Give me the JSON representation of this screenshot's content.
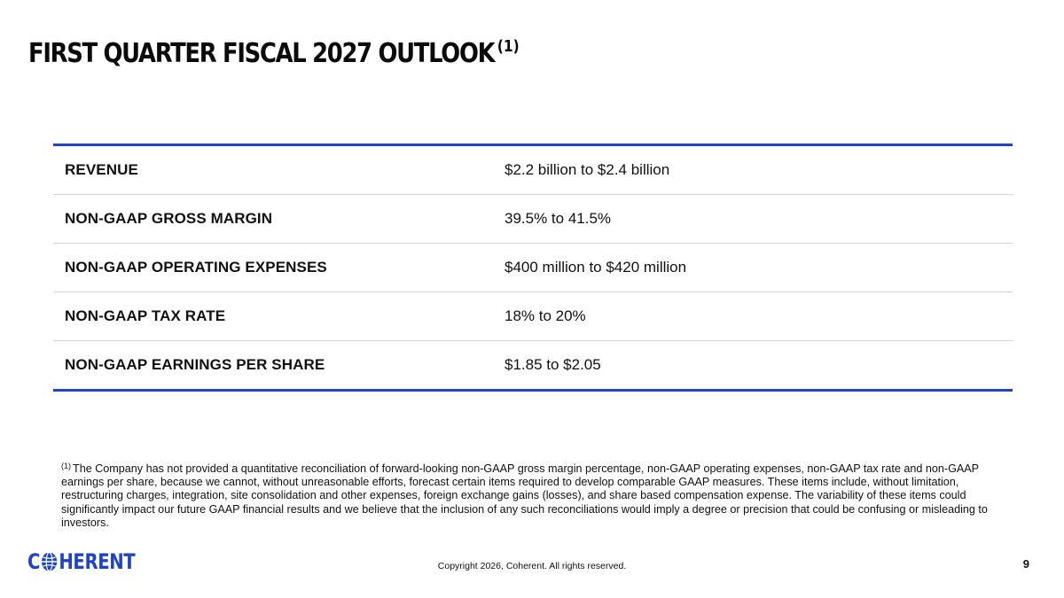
{
  "title": {
    "text": "FIRST QUARTER FISCAL 2027 OUTLOOK",
    "footnote_marker": "(1)"
  },
  "outlook": [
    {
      "label": "REVENUE",
      "value": "$2.2 billion to $2.4 billion"
    },
    {
      "label": "NON-GAAP GROSS MARGIN",
      "value": "39.5% to 41.5%"
    },
    {
      "label": "NON-GAAP OPERATING EXPENSES",
      "value": "$400 million to $420 million"
    },
    {
      "label": "NON-GAAP TAX RATE",
      "value": "18% to 20%"
    },
    {
      "label": "NON-GAAP EARNINGS PER SHARE",
      "value": "$1.85 to $2.05"
    }
  ],
  "footnote": {
    "marker": "(1)",
    "text": "The Company has not provided a quantitative reconciliation of forward-looking non-GAAP gross margin percentage, non-GAAP operating expenses, non-GAAP tax rate and non-GAAP earnings per share, because we cannot, without unreasonable efforts, forecast certain items required to develop comparable GAAP measures.  These items include, without limitation, restructuring charges, integration, site consolidation and other expenses, foreign exchange gains (losses), and share based compensation expense.  The variability of these items could significantly impact our future GAAP financial results and we believe that the inclusion of any such reconciliations would imply a degree or precision that could be confusing or misleading to investors."
  },
  "footer": {
    "logo": {
      "prefix": "C",
      "suffix": "HERENT",
      "icon": "globe-icon"
    },
    "copyright": "Copyright 2026, Coherent. All rights reserved.",
    "page_number": "9"
  },
  "colors": {
    "accent": "#1f45c4",
    "divider": "#d4d4d4",
    "text": "#111111"
  }
}
